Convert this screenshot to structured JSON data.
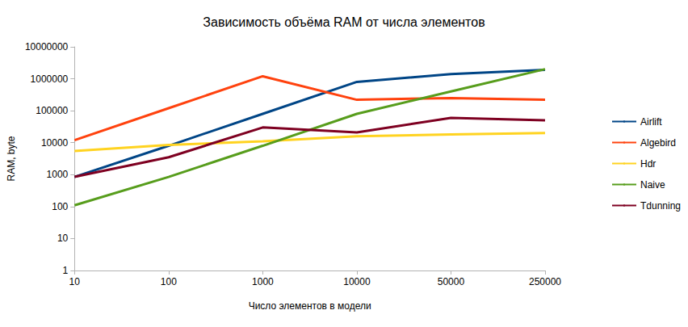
{
  "chart_data": {
    "type": "line",
    "title": "Зависимость объёма RAM от числа элементов",
    "x_label": "Число элементов в модели",
    "y_label": "RAM, byte",
    "categories": [
      "10",
      "100",
      "1000",
      "10000",
      "50000",
      "250000"
    ],
    "series": [
      {
        "name": "Airlift",
        "color": "#004586",
        "values": [
          850,
          8000,
          80000,
          800000,
          1400000,
          1900000
        ]
      },
      {
        "name": "Algebird",
        "color": "#ff420e",
        "values": [
          12000,
          120000,
          1200000,
          220000,
          250000,
          220000
        ]
      },
      {
        "name": "Hdr",
        "color": "#ffd320",
        "values": [
          5500,
          8500,
          11000,
          16000,
          18000,
          20000
        ]
      },
      {
        "name": "Naive",
        "color": "#579d1c",
        "values": [
          110,
          850,
          8000,
          80000,
          400000,
          2000000
        ]
      },
      {
        "name": "Tdunning",
        "color": "#7e0021",
        "values": [
          850,
          3500,
          30000,
          21000,
          60000,
          50000
        ]
      }
    ],
    "ylim": [
      1,
      10000000
    ],
    "yticks": [
      1,
      10,
      100,
      1000,
      10000,
      100000,
      1000000,
      10000000
    ],
    "log": "y",
    "grid": false,
    "legend": "right"
  }
}
